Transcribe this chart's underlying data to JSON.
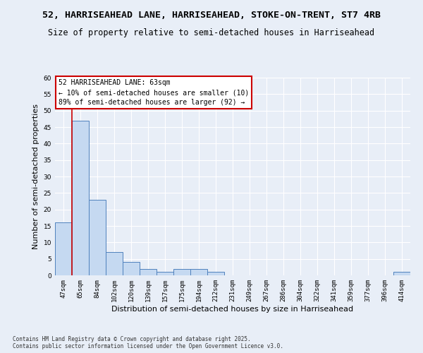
{
  "title_line1": "52, HARRISEAHEAD LANE, HARRISEAHEAD, STOKE-ON-TRENT, ST7 4RB",
  "title_line2": "Size of property relative to semi-detached houses in Harriseahead",
  "xlabel": "Distribution of semi-detached houses by size in Harriseahead",
  "ylabel": "Number of semi-detached properties",
  "categories": [
    "47sqm",
    "65sqm",
    "84sqm",
    "102sqm",
    "120sqm",
    "139sqm",
    "157sqm",
    "175sqm",
    "194sqm",
    "212sqm",
    "231sqm",
    "249sqm",
    "267sqm",
    "286sqm",
    "304sqm",
    "322sqm",
    "341sqm",
    "359sqm",
    "377sqm",
    "396sqm",
    "414sqm"
  ],
  "values": [
    16,
    47,
    23,
    7,
    4,
    2,
    1,
    2,
    2,
    1,
    0,
    0,
    0,
    0,
    0,
    0,
    0,
    0,
    0,
    0,
    1
  ],
  "bar_color": "#c5d9f1",
  "bar_edge_color": "#4f81bd",
  "highlight_line_color": "#cc0000",
  "annotation_text": "52 HARRISEAHEAD LANE: 63sqm\n← 10% of semi-detached houses are smaller (10)\n89% of semi-detached houses are larger (92) →",
  "annotation_box_color": "#ffffff",
  "annotation_box_edge_color": "#cc0000",
  "ylim": [
    0,
    60
  ],
  "yticks": [
    0,
    5,
    10,
    15,
    20,
    25,
    30,
    35,
    40,
    45,
    50,
    55,
    60
  ],
  "background_color": "#e8eef7",
  "plot_bg_color": "#e8eef7",
  "footer_text": "Contains HM Land Registry data © Crown copyright and database right 2025.\nContains public sector information licensed under the Open Government Licence v3.0.",
  "grid_color": "#ffffff",
  "title_fontsize": 9.5,
  "subtitle_fontsize": 8.5,
  "axis_label_fontsize": 8,
  "tick_fontsize": 6.5,
  "annotation_fontsize": 7,
  "footer_fontsize": 5.5
}
